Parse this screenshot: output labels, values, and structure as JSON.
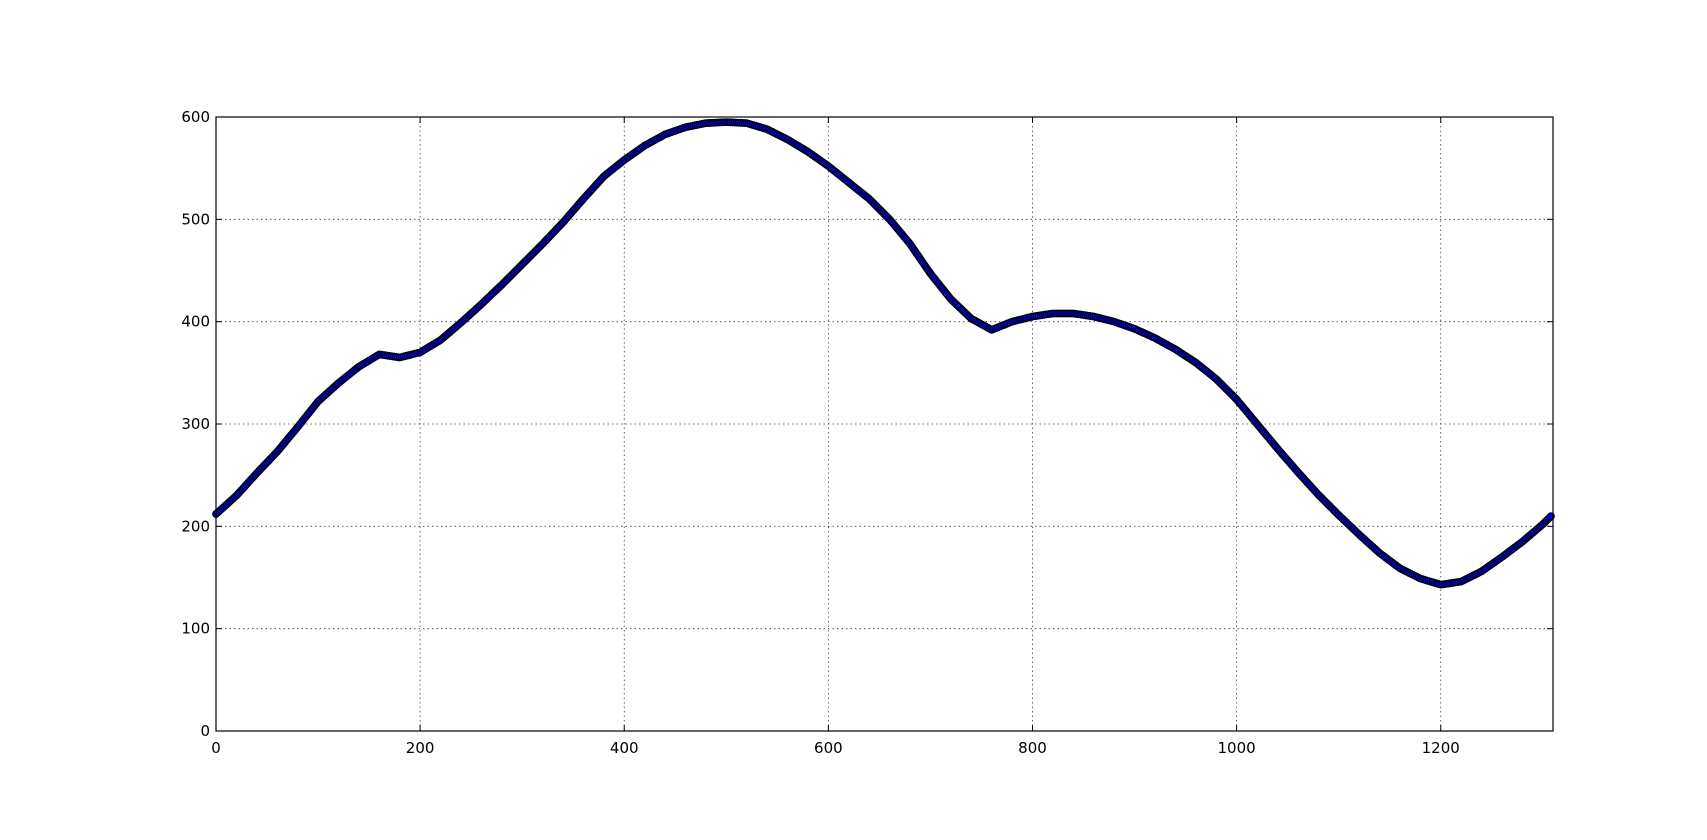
{
  "chart_data": {
    "type": "scatter",
    "title": "",
    "xlabel": "",
    "ylabel": "",
    "xlim": [
      0,
      1310
    ],
    "ylim": [
      0,
      600
    ],
    "grid": true,
    "xticks": [
      0,
      200,
      400,
      600,
      800,
      1000,
      1200
    ],
    "yticks": [
      0,
      100,
      200,
      300,
      400,
      500,
      600
    ],
    "xtick_labels": [
      "0",
      "200",
      "400",
      "600",
      "800",
      "1000",
      "1200"
    ],
    "ytick_labels": [
      "0",
      "100",
      "200",
      "300",
      "400",
      "500",
      "600"
    ],
    "marker_color": "#0000ff",
    "marker_edge_color": "#000000",
    "series": [
      {
        "x": [
          0,
          20,
          40,
          60,
          80,
          100,
          120,
          140,
          160,
          180,
          200,
          220,
          240,
          260,
          280,
          300,
          320,
          340,
          360,
          380,
          400,
          420,
          440,
          460,
          480,
          500,
          520,
          540,
          560,
          580,
          600,
          620,
          640,
          660,
          680,
          700,
          720,
          740,
          760,
          780,
          800,
          820,
          840,
          860,
          880,
          900,
          920,
          940,
          960,
          980,
          1000,
          1020,
          1040,
          1060,
          1080,
          1100,
          1120,
          1140,
          1160,
          1180,
          1200,
          1220,
          1240,
          1260,
          1280,
          1300,
          1308
        ],
        "y": [
          212,
          230,
          252,
          273,
          297,
          322,
          340,
          356,
          368,
          365,
          370,
          382,
          399,
          417,
          436,
          456,
          476,
          497,
          520,
          542,
          558,
          572,
          583,
          590,
          594,
          595,
          594,
          588,
          578,
          566,
          552,
          536,
          520,
          500,
          476,
          447,
          422,
          403,
          392,
          400,
          405,
          408,
          408,
          405,
          400,
          393,
          384,
          373,
          360,
          344,
          324,
          300,
          276,
          253,
          231,
          211,
          192,
          174,
          159,
          149,
          143,
          146,
          156,
          170,
          185,
          202,
          210
        ]
      }
    ]
  }
}
